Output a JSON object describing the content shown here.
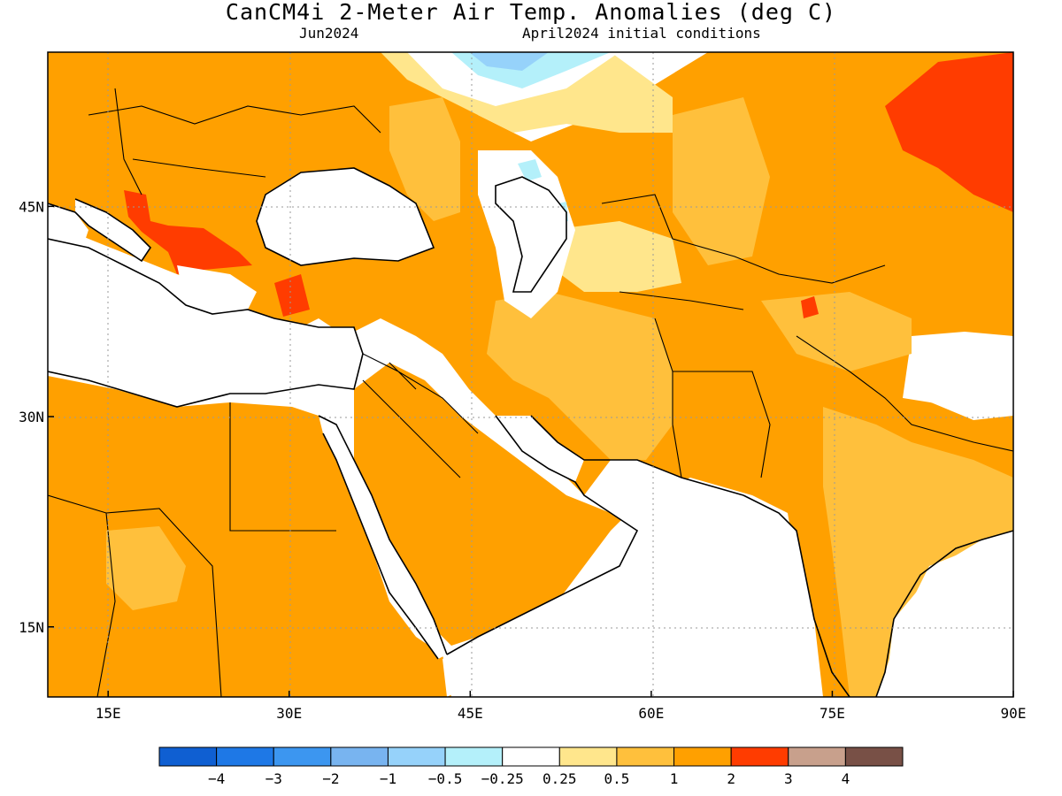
{
  "title": "CanCM4i 2-Meter Air Temp. Anomalies (deg C)",
  "subtitle_left": "Jun2024",
  "subtitle_right": "April2024 initial conditions",
  "lat_labels": [
    {
      "lat": 45,
      "label": "45N"
    },
    {
      "lat": 30,
      "label": "30N"
    },
    {
      "lat": 15,
      "label": "15N"
    }
  ],
  "lon_labels": [
    {
      "lon": 15,
      "label": "15E"
    },
    {
      "lon": 30,
      "label": "30E"
    },
    {
      "lon": 45,
      "label": "45E"
    },
    {
      "lon": 60,
      "label": "60E"
    },
    {
      "lon": 75,
      "label": "75E"
    },
    {
      "lon": 90,
      "label": "90E"
    }
  ],
  "extent": {
    "lon_min": 10,
    "lon_max": 90,
    "lat_min": 10,
    "lat_max": 56
  },
  "colorbar": {
    "colors": [
      "#0f5fd2",
      "#1e78e6",
      "#3c96f0",
      "#78b4f0",
      "#96d2fa",
      "#b4f0fa",
      "#ffffff",
      "#ffe68c",
      "#ffc03c",
      "#ffa000",
      "#ff3c00",
      "#c8a08c",
      "#785046"
    ],
    "labels": [
      "−4",
      "−3",
      "−2",
      "−1",
      "−0.5",
      "−0.25",
      "0.25",
      "0.5",
      "1",
      "2",
      "3",
      "4"
    ]
  },
  "anomaly_colors": {
    "neutral": "#ffffff",
    "light_yellow": "#ffe68c",
    "light_orange": "#ffc03c",
    "orange": "#ffa000",
    "red": "#ff3c00",
    "light_blue": "#b4f0fa",
    "blue": "#96d2fa"
  }
}
